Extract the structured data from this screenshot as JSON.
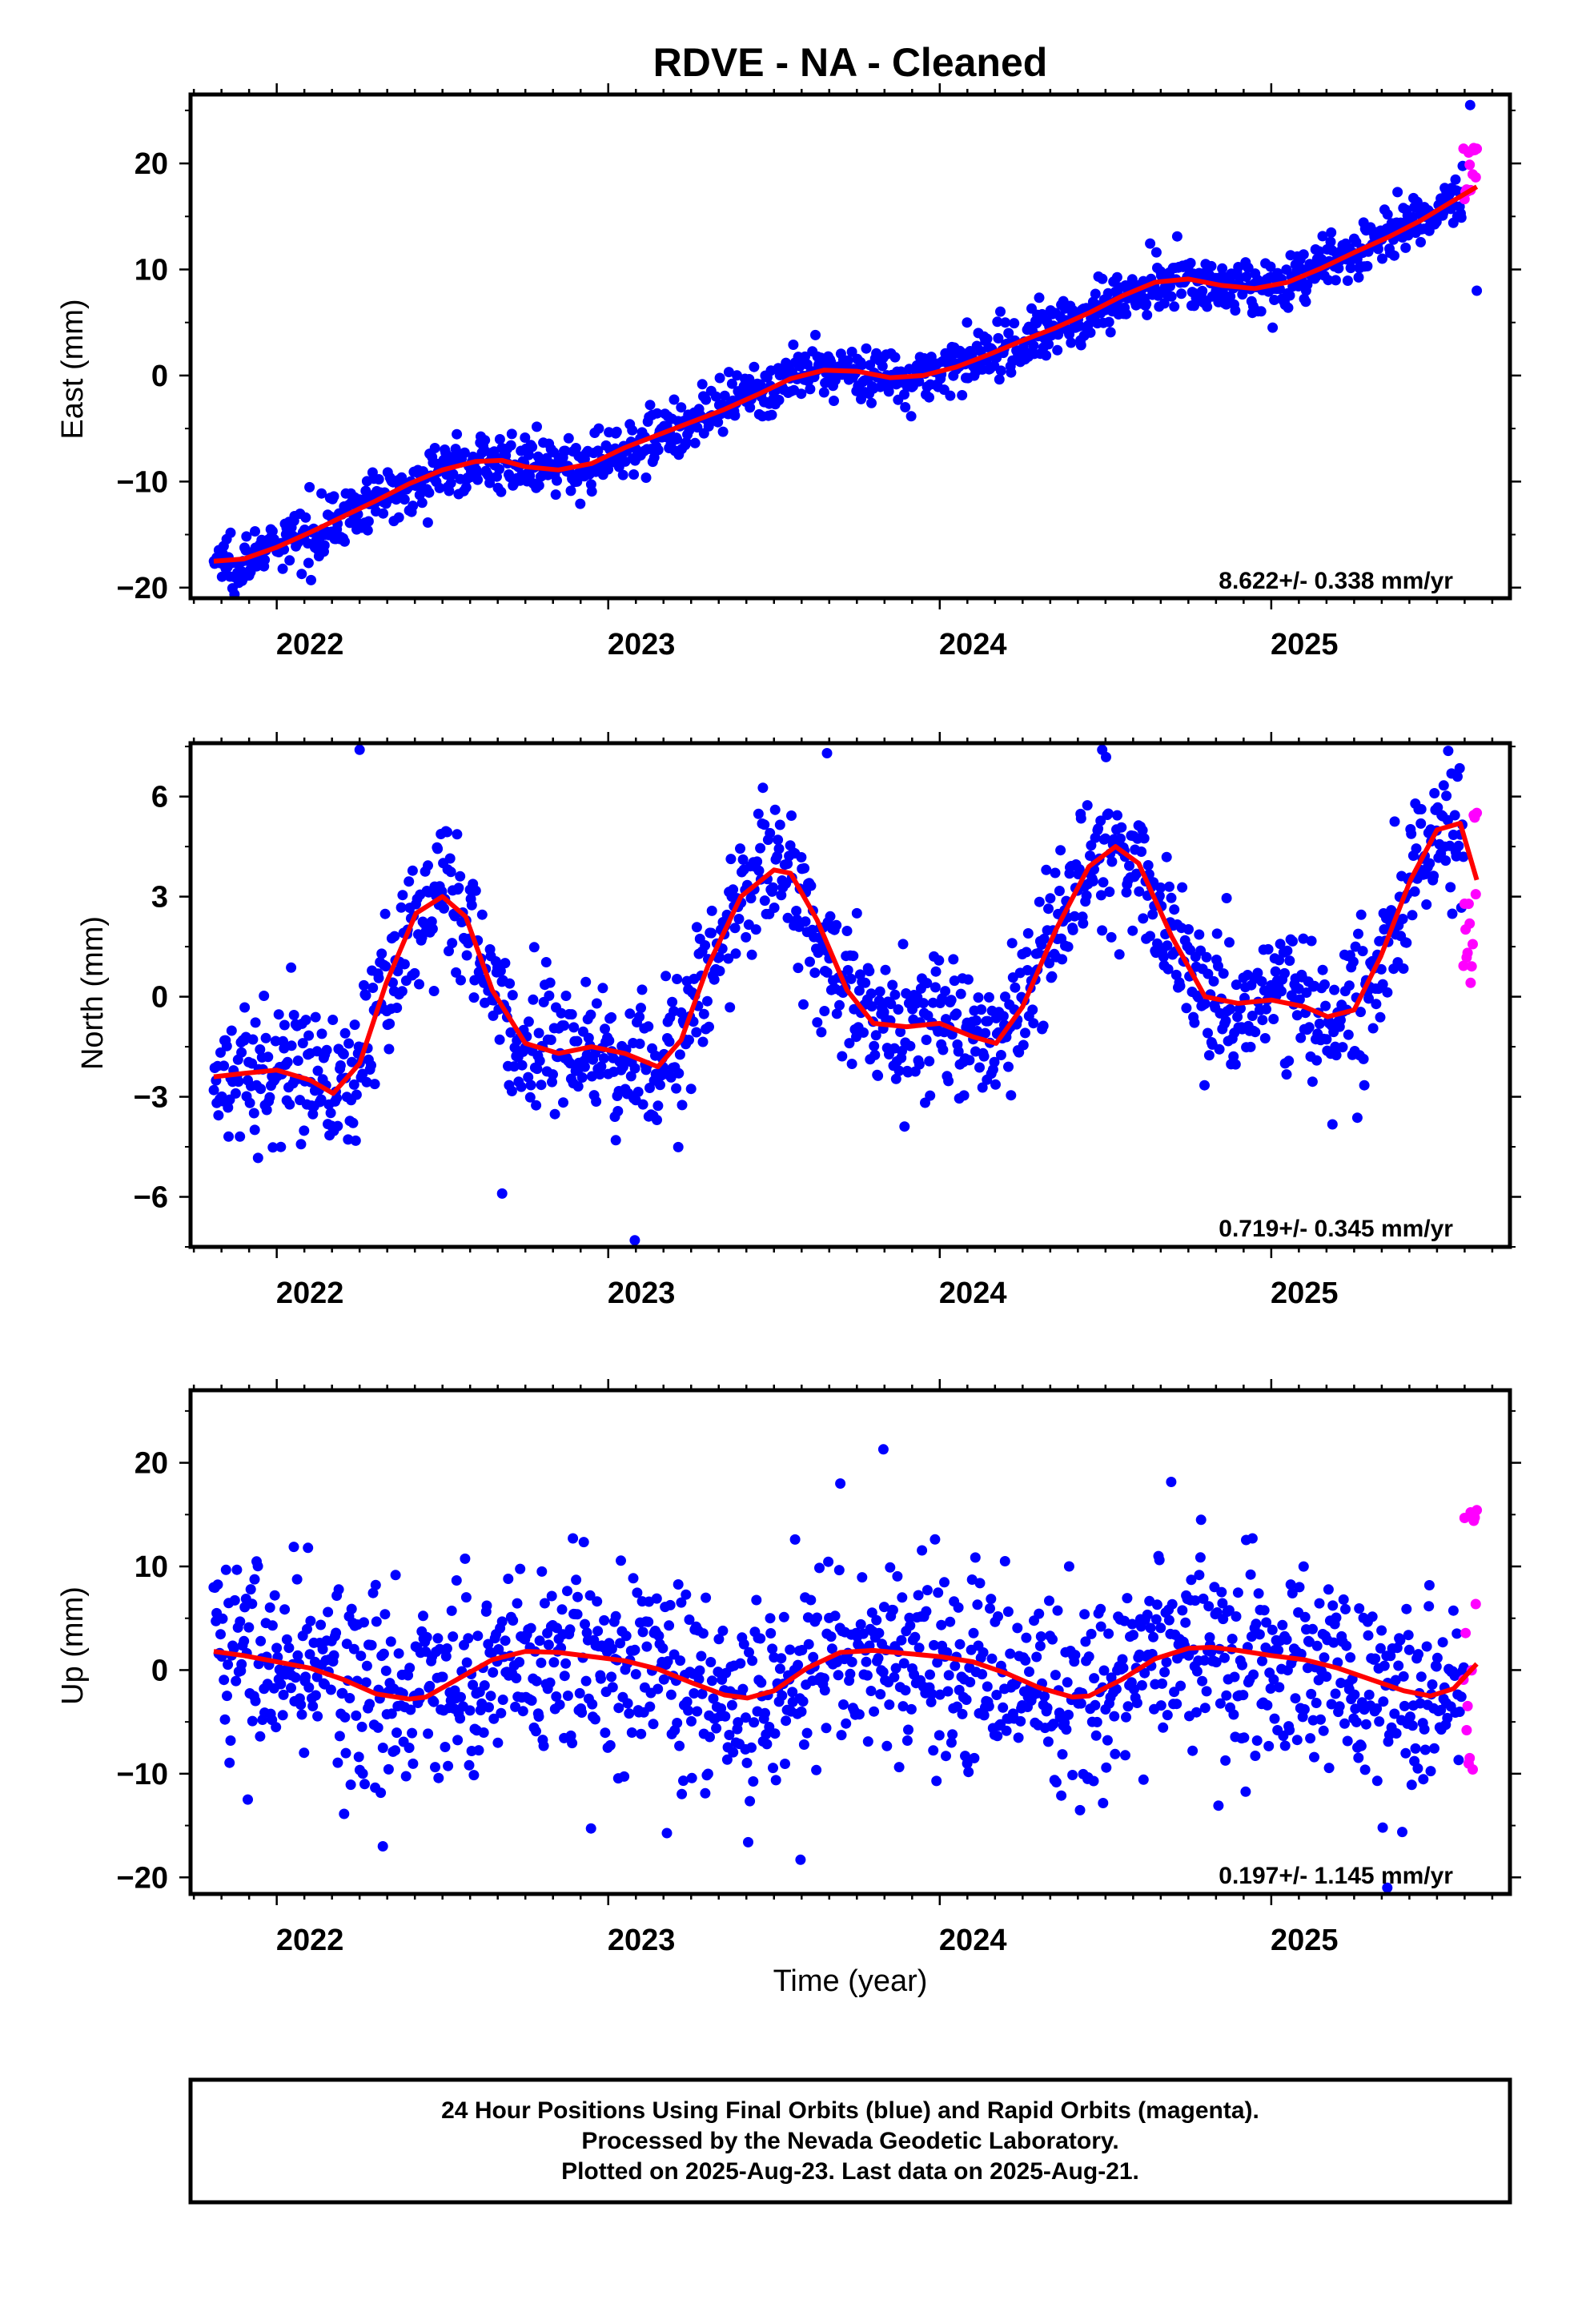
{
  "title": "RDVE  - NA - Cleaned",
  "xlabel": "Time (year)",
  "colors": {
    "final": "#0000ff",
    "rapid": "#ff00ff",
    "model": "#ff0000",
    "frame": "#000000"
  },
  "footer": {
    "line1": "24 Hour Positions Using Final Orbits (blue) and Rapid Orbits (magenta).",
    "line2": "Processed by the Nevada Geodetic Laboratory.",
    "line3": "Plotted on 2025-Aug-23. Last data on 2025-Aug-21."
  },
  "chart_data": [
    {
      "type": "scatter",
      "panel": "East",
      "ylabel": "East (mm)",
      "rate_text": "8.622+/- 0.338 mm/yr",
      "xlim": [
        2021.74,
        2025.72
      ],
      "ylim": [
        -21.0,
        26.5
      ],
      "xticks": [
        2022,
        2023,
        2024,
        2025
      ],
      "yticks": [
        -20,
        -10,
        0,
        10,
        20
      ],
      "model": {
        "x": [
          2021.81,
          2021.9,
          2022.0,
          2022.1,
          2022.2,
          2022.3,
          2022.4,
          2022.5,
          2022.6,
          2022.68,
          2022.75,
          2022.85,
          2022.95,
          2023.05,
          2023.15,
          2023.25,
          2023.35,
          2023.45,
          2023.55,
          2023.65,
          2023.75,
          2023.85,
          2023.95,
          2024.05,
          2024.15,
          2024.25,
          2024.35,
          2024.45,
          2024.55,
          2024.65,
          2024.75,
          2024.85,
          2024.95,
          2025.05,
          2025.15,
          2025.25,
          2025.35,
          2025.45,
          2025.55,
          2025.62
        ],
        "y": [
          -17.5,
          -17.3,
          -16.2,
          -14.8,
          -13.3,
          -11.8,
          -10.2,
          -8.9,
          -8.1,
          -8.0,
          -8.6,
          -8.9,
          -8.3,
          -6.8,
          -5.6,
          -4.4,
          -3.2,
          -1.8,
          -0.3,
          0.5,
          0.4,
          -0.2,
          0.0,
          0.8,
          2.0,
          3.3,
          4.5,
          5.9,
          7.5,
          8.8,
          9.1,
          8.5,
          8.2,
          8.8,
          10.1,
          11.6,
          13.0,
          14.6,
          16.5,
          17.8
        ]
      },
      "scatter": {
        "sigma": 1.3,
        "outliers": [
          [
            2025.6,
            25.5
          ],
          [
            2025.62,
            8.0
          ]
        ]
      },
      "rapid": {
        "x_start": 2025.58,
        "x_end": 2025.62,
        "count": 14,
        "y_center": 19.0,
        "spread": 2.6
      }
    },
    {
      "type": "scatter",
      "panel": "North",
      "ylabel": "North (mm)",
      "rate_text": "0.719+/- 0.345 mm/yr",
      "xlim": [
        2021.74,
        2025.72
      ],
      "ylim": [
        -7.5,
        7.6
      ],
      "xticks": [
        2022,
        2023,
        2024,
        2025
      ],
      "yticks": [
        -6,
        -3,
        0,
        3,
        6
      ],
      "model": {
        "x": [
          2021.81,
          2021.9,
          2022.0,
          2022.1,
          2022.17,
          2022.25,
          2022.33,
          2022.42,
          2022.5,
          2022.57,
          2022.65,
          2022.75,
          2022.85,
          2022.95,
          2023.05,
          2023.15,
          2023.22,
          2023.3,
          2023.4,
          2023.5,
          2023.55,
          2023.63,
          2023.72,
          2023.8,
          2023.9,
          2024.0,
          2024.1,
          2024.17,
          2024.25,
          2024.35,
          2024.45,
          2024.53,
          2024.6,
          2024.7,
          2024.8,
          2024.9,
          2025.0,
          2025.1,
          2025.17,
          2025.25,
          2025.33,
          2025.42,
          2025.5,
          2025.57,
          2025.62
        ],
        "y": [
          -2.4,
          -2.3,
          -2.2,
          -2.5,
          -2.9,
          -2.0,
          0.4,
          2.5,
          3.0,
          2.4,
          0.2,
          -1.4,
          -1.7,
          -1.5,
          -1.7,
          -2.1,
          -1.3,
          0.9,
          3.0,
          3.8,
          3.7,
          2.3,
          0.2,
          -0.8,
          -0.9,
          -0.8,
          -1.2,
          -1.4,
          -0.3,
          2.0,
          3.9,
          4.5,
          4.0,
          1.8,
          0.0,
          -0.2,
          -0.1,
          -0.3,
          -0.6,
          -0.4,
          1.2,
          3.5,
          5.0,
          5.2,
          3.5
        ]
      },
      "scatter": {
        "sigma": 1.05,
        "outliers": [
          [
            2022.25,
            7.4
          ],
          [
            2022.68,
            -5.9
          ],
          [
            2023.08,
            -7.3
          ],
          [
            2023.66,
            7.3
          ],
          [
            2024.49,
            7.4
          ]
        ]
      },
      "rapid": {
        "x_start": 2025.58,
        "x_end": 2025.62,
        "count": 14,
        "y_center": 3.0,
        "spread": 2.9
      }
    },
    {
      "type": "scatter",
      "panel": "Up",
      "ylabel": "Up (mm)",
      "rate_text": "0.197+/- 1.145 mm/yr",
      "xlim": [
        2021.74,
        2025.72
      ],
      "ylim": [
        -21.6,
        27.0
      ],
      "xticks": [
        2022,
        2023,
        2024,
        2025
      ],
      "yticks": [
        -20,
        -10,
        0,
        10,
        20
      ],
      "model": {
        "x": [
          2021.81,
          2021.9,
          2022.0,
          2022.1,
          2022.2,
          2022.3,
          2022.4,
          2022.45,
          2022.55,
          2022.65,
          2022.75,
          2022.85,
          2022.95,
          2023.05,
          2023.15,
          2023.25,
          2023.35,
          2023.42,
          2023.5,
          2023.6,
          2023.7,
          2023.8,
          2023.9,
          2024.0,
          2024.1,
          2024.2,
          2024.3,
          2024.4,
          2024.45,
          2024.55,
          2024.65,
          2024.75,
          2024.82,
          2024.9,
          2025.0,
          2025.1,
          2025.2,
          2025.3,
          2025.4,
          2025.48,
          2025.55,
          2025.62
        ],
        "y": [
          1.8,
          1.4,
          0.8,
          0.2,
          -0.9,
          -2.3,
          -2.8,
          -2.6,
          -0.8,
          1.0,
          1.8,
          1.7,
          1.3,
          0.9,
          0.1,
          -1.2,
          -2.4,
          -2.7,
          -2.0,
          0.2,
          1.7,
          1.9,
          1.6,
          1.3,
          0.8,
          -0.3,
          -1.7,
          -2.6,
          -2.5,
          -0.9,
          1.1,
          2.1,
          2.2,
          1.9,
          1.4,
          1.0,
          0.2,
          -0.9,
          -2.0,
          -2.5,
          -1.8,
          0.6
        ]
      },
      "scatter": {
        "sigma": 4.8,
        "outliers": [
          [
            2022.32,
            -17.0
          ],
          [
            2023.58,
            -18.3
          ],
          [
            2023.7,
            18.0
          ],
          [
            2023.83,
            21.3
          ],
          [
            2025.35,
            -21.0
          ]
        ]
      },
      "rapid": {
        "x_start": 2025.58,
        "x_end": 2025.62,
        "count": 14,
        "y_center": 4.0,
        "spread": 14.0
      }
    }
  ]
}
